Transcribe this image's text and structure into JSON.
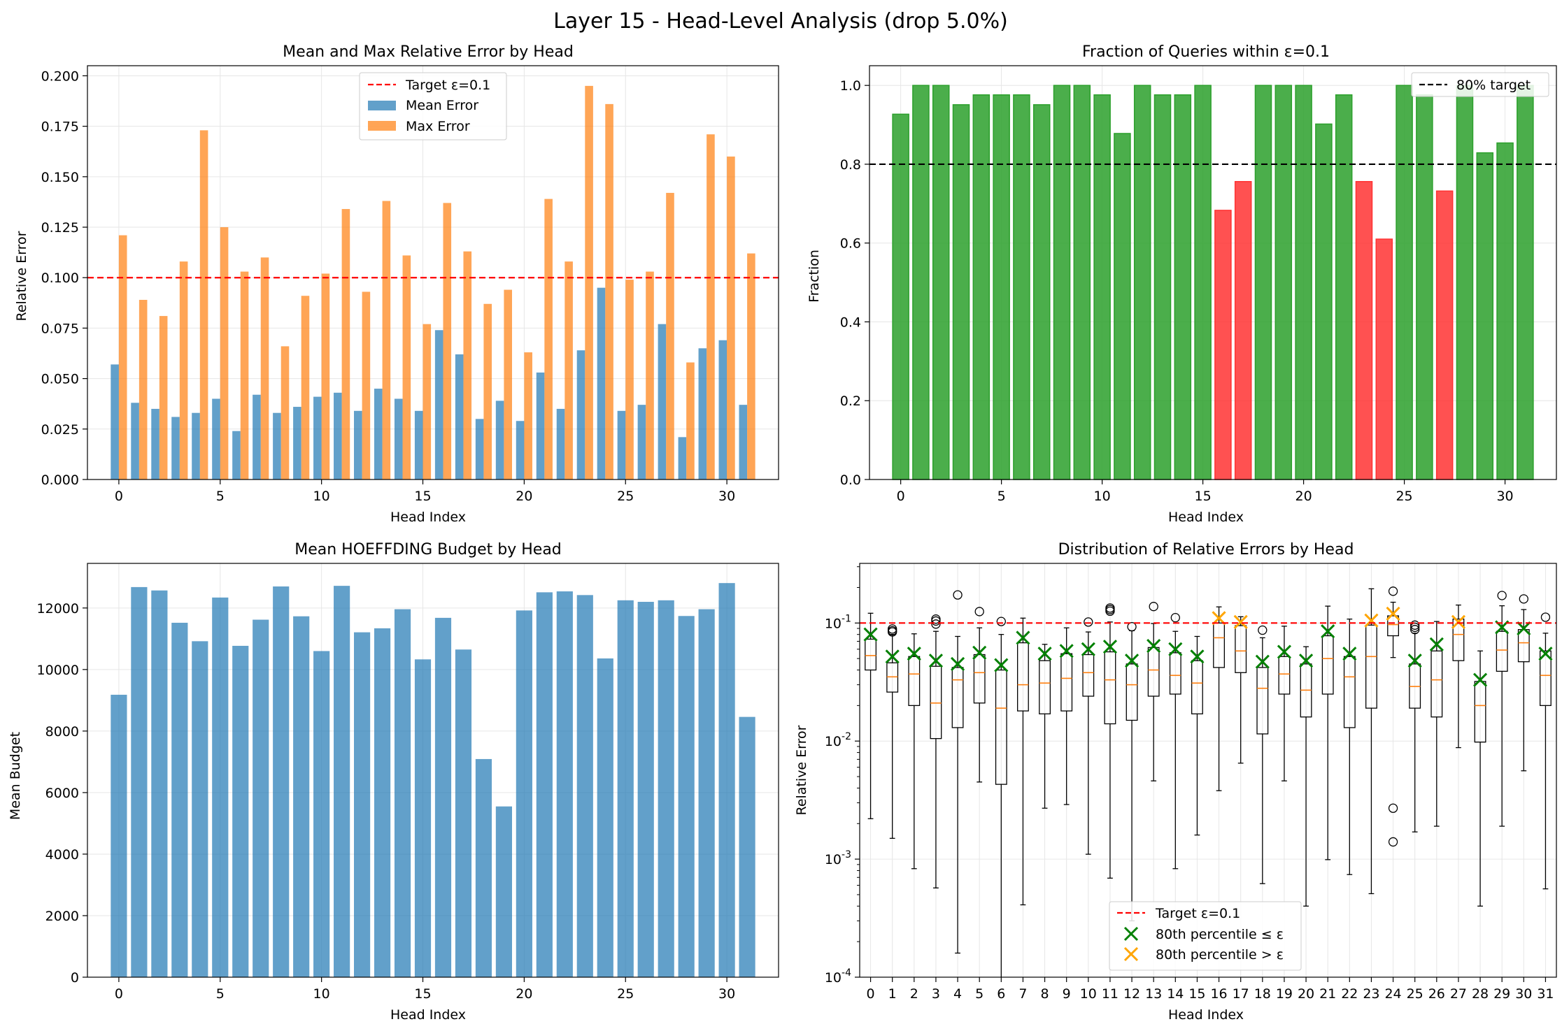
{
  "suptitle": "Layer 15 - Head-Level Analysis (drop 5.0%)",
  "chart_data": [
    {
      "type": "bar",
      "title": "Mean and Max Relative Error by Head",
      "xlabel": "Head Index",
      "ylabel": "Relative Error",
      "x": [
        0,
        1,
        2,
        3,
        4,
        5,
        6,
        7,
        8,
        9,
        10,
        11,
        12,
        13,
        14,
        15,
        16,
        17,
        18,
        19,
        20,
        21,
        22,
        23,
        24,
        25,
        26,
        27,
        28,
        29,
        30,
        31
      ],
      "xticks": [
        "0",
        "5",
        "10",
        "15",
        "20",
        "25",
        "30"
      ],
      "yticks": [
        "0.000",
        "0.025",
        "0.050",
        "0.075",
        "0.100",
        "0.125",
        "0.150",
        "0.175",
        "0.200"
      ],
      "ylim": [
        0,
        0.205
      ],
      "series": [
        {
          "name": "Mean Error",
          "color": "#1f77b4",
          "values": [
            0.057,
            0.038,
            0.035,
            0.031,
            0.033,
            0.04,
            0.024,
            0.042,
            0.033,
            0.036,
            0.041,
            0.043,
            0.034,
            0.045,
            0.04,
            0.034,
            0.074,
            0.062,
            0.03,
            0.039,
            0.029,
            0.053,
            0.035,
            0.064,
            0.095,
            0.034,
            0.037,
            0.077,
            0.021,
            0.065,
            0.069,
            0.037
          ]
        },
        {
          "name": "Max Error",
          "color": "#ff7f0e",
          "values": [
            0.121,
            0.089,
            0.081,
            0.108,
            0.173,
            0.125,
            0.103,
            0.11,
            0.066,
            0.091,
            0.102,
            0.134,
            0.093,
            0.138,
            0.111,
            0.077,
            0.137,
            0.113,
            0.087,
            0.094,
            0.063,
            0.139,
            0.108,
            0.195,
            0.186,
            0.099,
            0.103,
            0.142,
            0.058,
            0.171,
            0.16,
            0.112
          ]
        }
      ],
      "target": {
        "label": "Target ε=0.1",
        "value": 0.1,
        "color": "#ff0000"
      },
      "legend": "upper-center"
    },
    {
      "type": "bar",
      "title": "Fraction of Queries within ε=0.1",
      "xlabel": "Head Index",
      "ylabel": "Fraction",
      "x": [
        0,
        1,
        2,
        3,
        4,
        5,
        6,
        7,
        8,
        9,
        10,
        11,
        12,
        13,
        14,
        15,
        16,
        17,
        18,
        19,
        20,
        21,
        22,
        23,
        24,
        25,
        26,
        27,
        28,
        29,
        30,
        31
      ],
      "xticks": [
        "0",
        "5",
        "10",
        "15",
        "20",
        "25",
        "30"
      ],
      "yticks": [
        "0.0",
        "0.2",
        "0.4",
        "0.6",
        "0.8",
        "1.0"
      ],
      "ylim": [
        0,
        1.05
      ],
      "values": [
        0.927,
        1.0,
        1.0,
        0.951,
        0.976,
        0.976,
        0.976,
        0.951,
        1.0,
        1.0,
        0.976,
        0.878,
        1.0,
        0.976,
        0.976,
        1.0,
        0.683,
        0.756,
        1.0,
        1.0,
        1.0,
        0.902,
        0.976,
        0.756,
        0.61,
        1.0,
        0.976,
        0.732,
        1.0,
        0.829,
        0.854,
        1.0
      ],
      "pass_color": "#2ca02c",
      "fail_color": "#ff3333",
      "threshold": {
        "label": "80% target",
        "value": 0.8,
        "color": "#000000"
      },
      "legend": "top-right"
    },
    {
      "type": "bar",
      "title": "Mean HOEFFDING Budget by Head",
      "xlabel": "Head Index",
      "ylabel": "Mean Budget",
      "x": [
        0,
        1,
        2,
        3,
        4,
        5,
        6,
        7,
        8,
        9,
        10,
        11,
        12,
        13,
        14,
        15,
        16,
        17,
        18,
        19,
        20,
        21,
        22,
        23,
        24,
        25,
        26,
        27,
        28,
        29,
        30,
        31
      ],
      "xticks": [
        "0",
        "5",
        "10",
        "15",
        "20",
        "25",
        "30"
      ],
      "yticks": [
        "0",
        "2000",
        "4000",
        "6000",
        "8000",
        "10000",
        "12000"
      ],
      "ylim": [
        0,
        13450
      ],
      "values": [
        9180,
        12680,
        12570,
        11520,
        10920,
        12340,
        10770,
        11620,
        12700,
        11730,
        10600,
        12720,
        11210,
        11340,
        11960,
        10330,
        11680,
        10650,
        7090,
        5550,
        11920,
        12510,
        12540,
        12420,
        10360,
        12250,
        12200,
        12250,
        11740,
        11960,
        12810,
        8460
      ],
      "color": "#1f77b4"
    },
    {
      "type": "box",
      "title": "Distribution of Relative Errors by Head",
      "xlabel": "Head Index",
      "ylabel": "Relative Error",
      "yscale": "log",
      "ylim": [
        0.0001,
        0.32
      ],
      "yticks": [
        "10^-4",
        "10^-3",
        "10^-2",
        "10^-1"
      ],
      "categories": [
        "0",
        "1",
        "2",
        "3",
        "4",
        "5",
        "6",
        "7",
        "8",
        "9",
        "10",
        "11",
        "12",
        "13",
        "14",
        "15",
        "16",
        "17",
        "18",
        "19",
        "20",
        "21",
        "22",
        "23",
        "24",
        "25",
        "26",
        "27",
        "28",
        "29",
        "30",
        "31"
      ],
      "boxes": [
        {
          "head": 0,
          "wlo": 0.0022,
          "q1": 0.04,
          "med": 0.053,
          "q3": 0.073,
          "whi": 0.121,
          "p80": 0.08,
          "fliers": []
        },
        {
          "head": 1,
          "wlo": 0.0015,
          "q1": 0.026,
          "med": 0.035,
          "q3": 0.046,
          "whi": 0.08,
          "p80": 0.052,
          "fliers": [
            0.084,
            0.086,
            0.089
          ]
        },
        {
          "head": 2,
          "wlo": 0.00083,
          "q1": 0.02,
          "med": 0.037,
          "q3": 0.052,
          "whi": 0.081,
          "p80": 0.055,
          "fliers": []
        },
        {
          "head": 3,
          "wlo": 0.00057,
          "q1": 0.0105,
          "med": 0.021,
          "q3": 0.043,
          "whi": 0.085,
          "p80": 0.048,
          "fliers": [
            0.098,
            0.104,
            0.108
          ]
        },
        {
          "head": 4,
          "wlo": 0.00016,
          "q1": 0.013,
          "med": 0.033,
          "q3": 0.042,
          "whi": 0.077,
          "p80": 0.045,
          "fliers": [
            0.173
          ]
        },
        {
          "head": 5,
          "wlo": 0.0045,
          "q1": 0.021,
          "med": 0.038,
          "q3": 0.054,
          "whi": 0.091,
          "p80": 0.056,
          "fliers": [
            0.125
          ]
        },
        {
          "head": 6,
          "wlo": 0.0001,
          "q1": 0.0043,
          "med": 0.019,
          "q3": 0.04,
          "whi": 0.08,
          "p80": 0.044,
          "fliers": [
            0.103
          ]
        },
        {
          "head": 7,
          "wlo": 0.00041,
          "q1": 0.018,
          "med": 0.03,
          "q3": 0.068,
          "whi": 0.11,
          "p80": 0.075,
          "fliers": []
        },
        {
          "head": 8,
          "wlo": 0.0027,
          "q1": 0.017,
          "med": 0.031,
          "q3": 0.048,
          "whi": 0.066,
          "p80": 0.055,
          "fliers": []
        },
        {
          "head": 9,
          "wlo": 0.0029,
          "q1": 0.018,
          "med": 0.034,
          "q3": 0.055,
          "whi": 0.091,
          "p80": 0.058,
          "fliers": []
        },
        {
          "head": 10,
          "wlo": 0.0011,
          "q1": 0.024,
          "med": 0.038,
          "q3": 0.054,
          "whi": 0.084,
          "p80": 0.06,
          "fliers": [
            0.102
          ]
        },
        {
          "head": 11,
          "wlo": 0.00069,
          "q1": 0.014,
          "med": 0.033,
          "q3": 0.057,
          "whi": 0.102,
          "p80": 0.063,
          "fliers": [
            0.126,
            0.13,
            0.134
          ]
        },
        {
          "head": 12,
          "wlo": 0.0003,
          "q1": 0.015,
          "med": 0.03,
          "q3": 0.045,
          "whi": 0.086,
          "p80": 0.048,
          "fliers": [
            0.093
          ]
        },
        {
          "head": 13,
          "wlo": 0.0046,
          "q1": 0.024,
          "med": 0.04,
          "q3": 0.062,
          "whi": 0.099,
          "p80": 0.064,
          "fliers": [
            0.138
          ]
        },
        {
          "head": 14,
          "wlo": 0.00083,
          "q1": 0.025,
          "med": 0.036,
          "q3": 0.056,
          "whi": 0.085,
          "p80": 0.06,
          "fliers": [
            0.111
          ]
        },
        {
          "head": 15,
          "wlo": 0.0016,
          "q1": 0.017,
          "med": 0.031,
          "q3": 0.048,
          "whi": 0.077,
          "p80": 0.052,
          "fliers": []
        },
        {
          "head": 16,
          "wlo": 0.0038,
          "q1": 0.042,
          "med": 0.075,
          "q3": 0.1,
          "whi": 0.137,
          "p80": 0.11,
          "fliers": []
        },
        {
          "head": 17,
          "wlo": 0.0065,
          "q1": 0.038,
          "med": 0.058,
          "q3": 0.095,
          "whi": 0.113,
          "p80": 0.102,
          "fliers": []
        },
        {
          "head": 18,
          "wlo": 0.00062,
          "q1": 0.0115,
          "med": 0.028,
          "q3": 0.042,
          "whi": 0.075,
          "p80": 0.047,
          "fliers": [
            0.087
          ]
        },
        {
          "head": 19,
          "wlo": 0.0046,
          "q1": 0.025,
          "med": 0.037,
          "q3": 0.052,
          "whi": 0.094,
          "p80": 0.057,
          "fliers": []
        },
        {
          "head": 20,
          "wlo": 0.0004,
          "q1": 0.016,
          "med": 0.027,
          "q3": 0.045,
          "whi": 0.063,
          "p80": 0.048,
          "fliers": []
        },
        {
          "head": 21,
          "wlo": 0.00099,
          "q1": 0.025,
          "med": 0.05,
          "q3": 0.078,
          "whi": 0.139,
          "p80": 0.085,
          "fliers": []
        },
        {
          "head": 22,
          "wlo": 0.00074,
          "q1": 0.013,
          "med": 0.035,
          "q3": 0.052,
          "whi": 0.108,
          "p80": 0.055,
          "fliers": []
        },
        {
          "head": 23,
          "wlo": 0.00051,
          "q1": 0.019,
          "med": 0.052,
          "q3": 0.096,
          "whi": 0.195,
          "p80": 0.105,
          "fliers": []
        },
        {
          "head": 24,
          "wlo": 0.051,
          "q1": 0.078,
          "med": 0.097,
          "q3": 0.115,
          "whi": 0.15,
          "p80": 0.12,
          "fliers": [
            0.0014,
            0.0027,
            0.186
          ]
        },
        {
          "head": 25,
          "wlo": 0.0017,
          "q1": 0.019,
          "med": 0.029,
          "q3": 0.045,
          "whi": 0.082,
          "p80": 0.048,
          "fliers": [
            0.088,
            0.092,
            0.096
          ]
        },
        {
          "head": 26,
          "wlo": 0.0019,
          "q1": 0.016,
          "med": 0.033,
          "q3": 0.058,
          "whi": 0.103,
          "p80": 0.066,
          "fliers": []
        },
        {
          "head": 27,
          "wlo": 0.0088,
          "q1": 0.048,
          "med": 0.08,
          "q3": 0.108,
          "whi": 0.142,
          "p80": 0.102,
          "fliers": []
        },
        {
          "head": 28,
          "wlo": 0.0004,
          "q1": 0.0098,
          "med": 0.02,
          "q3": 0.032,
          "whi": 0.058,
          "p80": 0.033,
          "fliers": []
        },
        {
          "head": 29,
          "wlo": 0.0019,
          "q1": 0.039,
          "med": 0.059,
          "q3": 0.085,
          "whi": 0.14,
          "p80": 0.092,
          "fliers": [
            0.171
          ]
        },
        {
          "head": 30,
          "wlo": 0.0056,
          "q1": 0.047,
          "med": 0.068,
          "q3": 0.088,
          "whi": 0.13,
          "p80": 0.09,
          "fliers": [
            0.16
          ]
        },
        {
          "head": 31,
          "wlo": 0.00056,
          "q1": 0.02,
          "med": 0.036,
          "q3": 0.058,
          "whi": 0.082,
          "p80": 0.055,
          "fliers": [
            0.112
          ]
        }
      ],
      "target": {
        "label": "Target ε=0.1",
        "value": 0.1,
        "color": "#ff0000"
      },
      "legend_items": [
        {
          "label": "Target ε=0.1",
          "color": "#ff0000"
        },
        {
          "label": "80th percentile ≤ ε",
          "color": "#008000"
        },
        {
          "label": "80th percentile > ε",
          "color": "#ffa500"
        }
      ],
      "legend": "bottom-center"
    }
  ]
}
